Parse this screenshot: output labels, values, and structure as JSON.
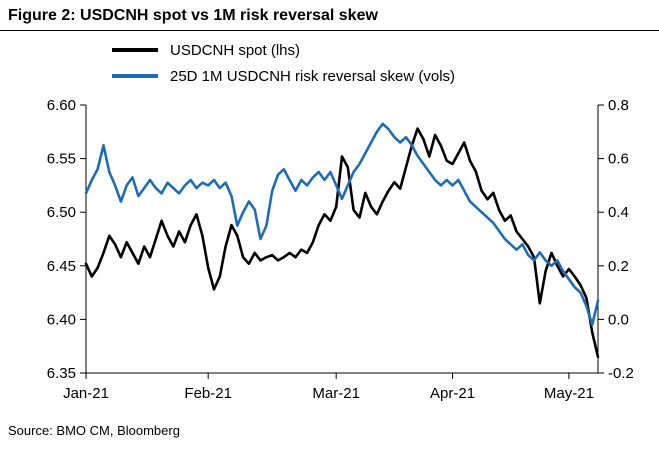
{
  "figure": {
    "title": "Figure 2: USDCNH spot vs 1M risk reversal skew",
    "source": "Source: BMO CM, Bloomberg"
  },
  "chart_data": {
    "type": "line",
    "title": "Figure 2: USDCNH spot vs 1M risk reversal skew",
    "legend_position": "top",
    "grid": false,
    "x_tick_labels": [
      "Jan-21",
      "Feb-21",
      "Mar-21",
      "Apr-21",
      "May-21"
    ],
    "x_tick_indices": [
      0,
      21,
      43,
      63,
      83
    ],
    "axes": {
      "left": {
        "min": 6.35,
        "max": 6.6,
        "ticks": [
          6.6,
          6.55,
          6.5,
          6.45,
          6.4,
          6.35
        ],
        "tick_labels": [
          "6.60",
          "6.55",
          "6.50",
          "6.45",
          "6.40",
          "6.35"
        ]
      },
      "right": {
        "min": -0.2,
        "max": 0.8,
        "ticks": [
          0.8,
          0.6,
          0.4,
          0.2,
          0.0,
          -0.2
        ],
        "tick_labels": [
          "0.8",
          "0.6",
          "0.4",
          "0.2",
          "0.0",
          "-0.2"
        ]
      }
    },
    "series": [
      {
        "name": "USDCNH spot (lhs)",
        "axis": "left",
        "color": "#000000",
        "values": [
          6.452,
          6.44,
          6.448,
          6.462,
          6.478,
          6.47,
          6.458,
          6.472,
          6.462,
          6.452,
          6.468,
          6.458,
          6.475,
          6.492,
          6.478,
          6.468,
          6.482,
          6.472,
          6.488,
          6.498,
          6.478,
          6.448,
          6.428,
          6.44,
          6.468,
          6.488,
          6.478,
          6.458,
          6.452,
          6.462,
          6.455,
          6.458,
          6.46,
          6.455,
          6.458,
          6.462,
          6.458,
          6.465,
          6.462,
          6.472,
          6.488,
          6.498,
          6.492,
          6.505,
          6.552,
          6.542,
          6.502,
          6.495,
          6.518,
          6.505,
          6.498,
          6.51,
          6.52,
          6.528,
          6.522,
          6.542,
          6.562,
          6.578,
          6.568,
          6.552,
          6.572,
          6.562,
          6.548,
          6.545,
          6.555,
          6.565,
          6.548,
          6.538,
          6.52,
          6.512,
          6.518,
          6.502,
          6.492,
          6.497,
          6.482,
          6.475,
          6.468,
          6.458,
          6.415,
          6.445,
          6.462,
          6.45,
          6.44,
          6.447,
          6.44,
          6.432,
          6.42,
          6.388,
          6.365
        ]
      },
      {
        "name": "25D 1M USDCNH risk reversal skew (vols)",
        "axis": "right",
        "color": "#1f6cb4",
        "values": [
          0.47,
          0.52,
          0.56,
          0.65,
          0.55,
          0.5,
          0.44,
          0.5,
          0.53,
          0.46,
          0.49,
          0.52,
          0.49,
          0.47,
          0.51,
          0.49,
          0.47,
          0.5,
          0.52,
          0.49,
          0.51,
          0.5,
          0.52,
          0.49,
          0.51,
          0.46,
          0.35,
          0.4,
          0.44,
          0.41,
          0.3,
          0.35,
          0.48,
          0.54,
          0.56,
          0.52,
          0.48,
          0.52,
          0.5,
          0.53,
          0.55,
          0.52,
          0.55,
          0.5,
          0.45,
          0.5,
          0.55,
          0.58,
          0.62,
          0.66,
          0.7,
          0.73,
          0.71,
          0.68,
          0.66,
          0.68,
          0.65,
          0.61,
          0.58,
          0.55,
          0.52,
          0.5,
          0.52,
          0.5,
          0.52,
          0.48,
          0.44,
          0.42,
          0.4,
          0.38,
          0.36,
          0.33,
          0.3,
          0.28,
          0.26,
          0.28,
          0.24,
          0.22,
          0.25,
          0.22,
          0.2,
          0.22,
          0.18,
          0.15,
          0.12,
          0.1,
          0.05,
          -0.02,
          0.07
        ]
      }
    ]
  }
}
